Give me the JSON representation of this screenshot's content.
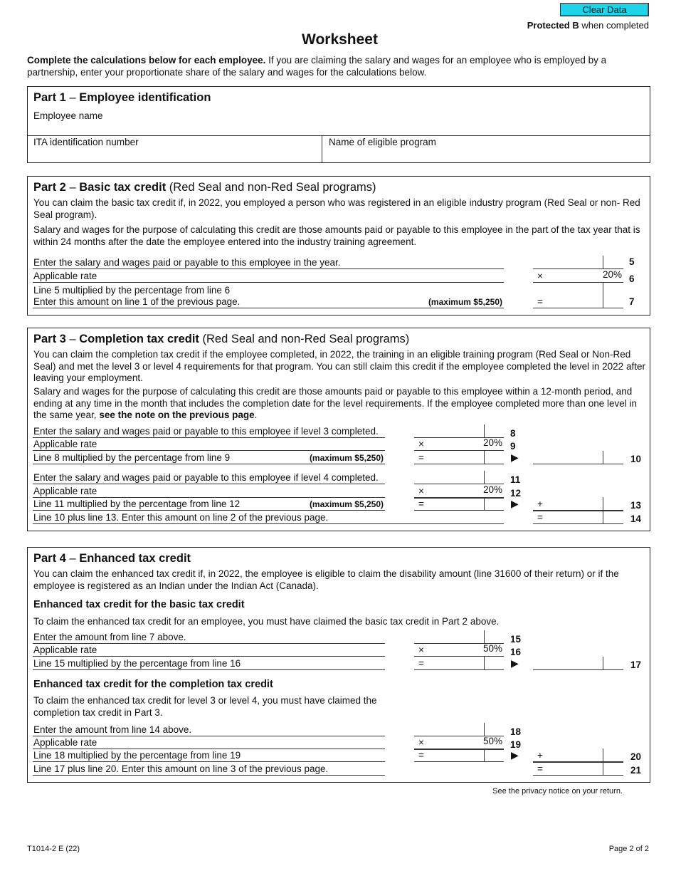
{
  "header": {
    "clear_button": "Clear Data",
    "protected_bold": "Protected B",
    "protected_rest": " when completed",
    "title": "Worksheet"
  },
  "intro": {
    "bold": "Complete the calculations below for each employee.",
    "rest": " If you are claiming the salary and wages for an employee who is employed by a partnership, enter your proportionate share of the salary and wages for the calculations below."
  },
  "part1": {
    "num": "Part 1",
    "title": "Employee identification",
    "employee_name": "Employee name",
    "ita": "ITA identification number",
    "program": "Name of eligible program"
  },
  "part2": {
    "num": "Part 2",
    "title": "Basic tax credit",
    "subtitle": "(Red Seal and non-Red Seal programs)",
    "p1": "You can claim the basic tax credit if, in 2022, you employed a person who was registered in an eligible industry program (Red Seal or non- Red Seal program).",
    "p2": "Salary and wages for the purpose of calculating this credit are those amounts paid or payable to this employee in the part of the tax year that is within 24 months after the date the employee entered into the industry training agreement.",
    "rows": [
      {
        "text": "Enter the salary and wages paid or payable to this employee in the year.",
        "line": "5"
      },
      {
        "text": "Applicable rate",
        "op": "×",
        "rate": "20%",
        "line": "6"
      },
      {
        "text": "Line 5 multiplied by the percentage from line 6",
        "text2": "Enter this amount on line 1 of the previous page.",
        "max": "(maximum $5,250)",
        "op": "=",
        "line": "7"
      }
    ]
  },
  "part3": {
    "num": "Part 3",
    "title": "Completion tax credit",
    "subtitle": "(Red Seal and non-Red Seal programs)",
    "p1": "You can claim the completion tax credit if the employee completed, in 2022, the training in an eligible training program (Red Seal or Non-Red Seal) and met the level 3 or level 4 requirements for that program. You can still claim this credit if the employee completed the level in 2022 after leaving your employment.",
    "p2": "Salary and wages for the purpose of calculating this credit are those amounts paid or payable to this employee within a 12-month period, and ending at any time in the month that includes the completion date for the level requirements. If the employee completed more than one level in the same year, ",
    "p2_bold": "see the note on the previous page",
    "p2_end": ".",
    "rows": [
      {
        "text": "Enter the salary and wages paid or payable to this employee if level 3 completed.",
        "line": "8"
      },
      {
        "text": "Applicable rate",
        "op": "×",
        "rate": "20%",
        "line": "9"
      },
      {
        "text": "Line 8 multiplied by the percentage from line 9",
        "max": "(maximum $5,250)",
        "op": "=",
        "line": "10"
      },
      {
        "text": "Enter the salary and wages paid or payable to this employee if level 4 completed.",
        "line": "11"
      },
      {
        "text": "Applicable rate",
        "op": "×",
        "rate": "20%",
        "line": "12"
      },
      {
        "text": "Line 11 multiplied by the percentage from line 12",
        "max": "(maximum $5,250)",
        "op": "=",
        "op2": "+",
        "line": "13"
      },
      {
        "text": "Line 10 plus line 13. Enter this amount on line 2 of the previous page.",
        "op2": "=",
        "line": "14"
      }
    ]
  },
  "part4": {
    "num": "Part 4",
    "title": "Enhanced tax credit",
    "p1": "You can claim the enhanced tax credit if, in 2022, the employee is eligible to claim the disability amount (line 31600 of their return) or if the employee is registered as an Indian under the Indian Act (Canada).",
    "sections": [
      {
        "heading": "Enhanced tax credit for the basic tax credit",
        "text": "To claim the enhanced tax credit for an employee, you must have claimed the basic tax credit in Part 2 above.",
        "rows": [
          {
            "text": "Enter the amount from line 7 above.",
            "line": "15"
          },
          {
            "text": "Applicable rate",
            "op": "×",
            "rate": "50%",
            "line": "16"
          },
          {
            "text": "Line 15 multiplied by the percentage from line 16",
            "op": "=",
            "line": "17"
          }
        ]
      },
      {
        "heading": "Enhanced tax credit for the completion tax credit",
        "text": "To claim the enhanced tax credit for level 3 or level 4, you must have claimed the completion tax credit in Part 3.",
        "rows": [
          {
            "text": "Enter the amount from line 14 above.",
            "line": "18"
          },
          {
            "text": "Applicable rate",
            "op": "×",
            "rate": "50%",
            "line": "19"
          },
          {
            "text": "Line 18 multiplied by the percentage from line 19",
            "op": "=",
            "op2": "+",
            "line": "20"
          },
          {
            "text": "Line 17 plus line 20. Enter this amount on line 3 of the previous page.",
            "op2": "=",
            "line": "21"
          }
        ]
      }
    ]
  },
  "footer": {
    "privacy": "See the privacy notice on your return.",
    "form_id": "T1014-2 E (22)",
    "page": "Page 2 of 2"
  },
  "colors": {
    "clear_button": "#1fd3e8"
  },
  "icons": {
    "arrow": "right-triangle-arrow-icon"
  }
}
